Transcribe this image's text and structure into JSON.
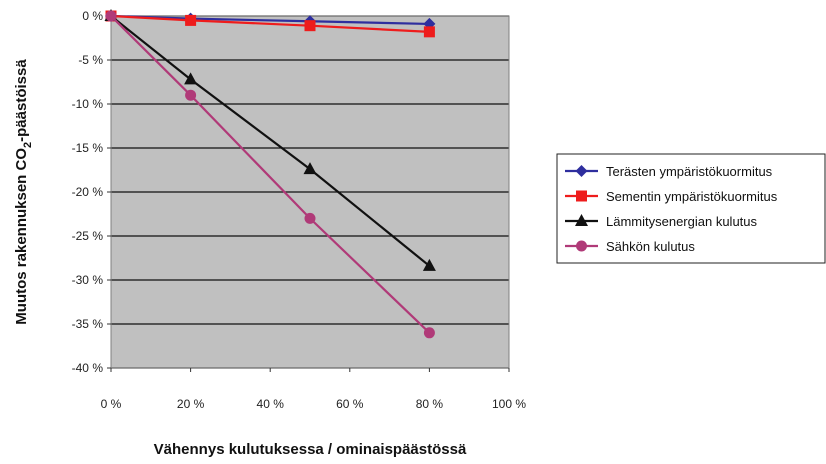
{
  "chart_data": {
    "type": "line",
    "title": "",
    "xlabel": "Vähennys kulutuksessa / ominaispäästössä",
    "ylabel": "Muutos rakennuksen CO2-päästöissä",
    "ylabel_parts": {
      "before": "Muutos rakennuksen CO",
      "sub": "2",
      "after": "-päästöissä"
    },
    "xlim": [
      0,
      100
    ],
    "ylim": [
      -40,
      0
    ],
    "x_ticks": [
      0,
      20,
      40,
      60,
      80,
      100
    ],
    "y_ticks": [
      0,
      -5,
      -10,
      -15,
      -20,
      -25,
      -30,
      -35,
      -40
    ],
    "x_tick_labels": [
      "0 %",
      "20 %",
      "40 %",
      "60 %",
      "80 %",
      "100 %"
    ],
    "y_tick_labels": [
      "0 %",
      "-5 %",
      "-10 %",
      "-15 %",
      "-20 %",
      "-25 %",
      "-30 %",
      "-35 %",
      "-40 %"
    ],
    "grid": "horizontal",
    "plot_background": "#c0c0c0",
    "legend_position": "right",
    "series": [
      {
        "name": "Terästen ympäristökuormitus",
        "color": "#2e2e9e",
        "marker": "diamond",
        "x": [
          0,
          20,
          50,
          80
        ],
        "values": [
          0,
          -0.3,
          -0.6,
          -0.9
        ]
      },
      {
        "name": "Sementin ympäristökuormitus",
        "color": "#ee1c1c",
        "marker": "square",
        "x": [
          0,
          20,
          50,
          80
        ],
        "values": [
          0,
          -0.5,
          -1.1,
          -1.8
        ]
      },
      {
        "name": "Lämmitysenergian kulutus",
        "color": "#111111",
        "marker": "triangle",
        "x": [
          0,
          20,
          50,
          80
        ],
        "values": [
          0,
          -7.2,
          -17.4,
          -28.4
        ]
      },
      {
        "name": "Sähkön kulutus",
        "color": "#b03a78",
        "marker": "circle",
        "x": [
          0,
          20,
          50,
          80
        ],
        "values": [
          0,
          -9.0,
          -23.0,
          -36.0
        ]
      }
    ]
  }
}
